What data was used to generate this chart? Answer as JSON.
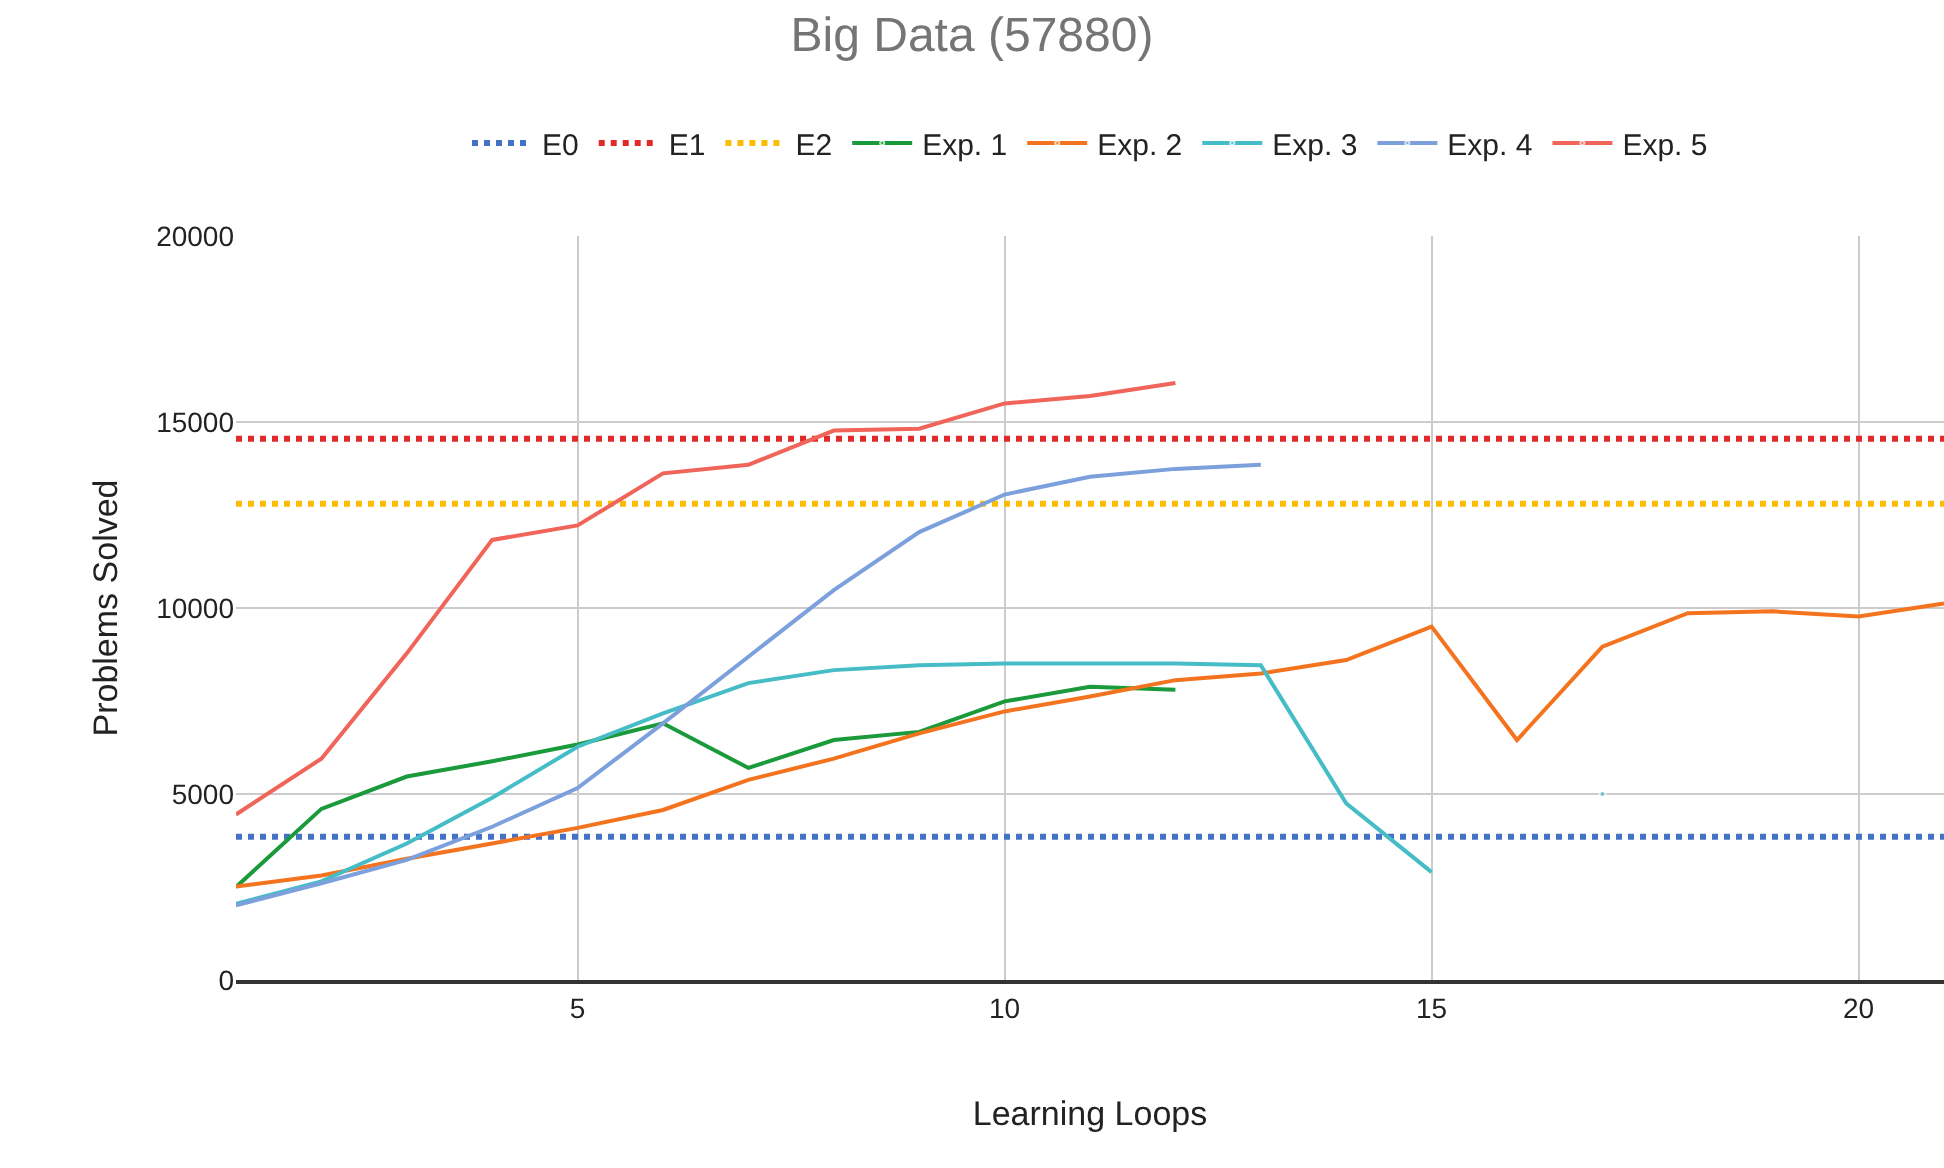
{
  "chart_data": {
    "type": "line",
    "title": "Big Data (57880)",
    "xlabel": "Learning Loops",
    "ylabel": "Problems Solved",
    "x": [
      1,
      2,
      3,
      4,
      5,
      6,
      7,
      8,
      9,
      10,
      11,
      12,
      13,
      14,
      15,
      16,
      17,
      18,
      19,
      20,
      21
    ],
    "xlim": [
      1,
      21
    ],
    "xticks": [
      5,
      10,
      15,
      20
    ],
    "ylim": [
      0,
      20000
    ],
    "yticks": [
      0,
      5000,
      10000,
      15000,
      20000
    ],
    "grid": true,
    "legend": "top",
    "marker": "none",
    "line_style": "solid",
    "ref_lines": [
      {
        "axis": "y",
        "value": 3850,
        "label": "E0",
        "color": "#4472c4",
        "line_style": "dotted"
      },
      {
        "axis": "y",
        "value": 14550,
        "label": "E1",
        "color": "#e02a2a",
        "line_style": "dotted"
      },
      {
        "axis": "y",
        "value": 12800,
        "label": "E2",
        "color": "#fbbc04",
        "line_style": "dotted"
      }
    ],
    "series": [
      {
        "name": "Exp. 1",
        "color": "#1a9a3a",
        "values": [
          2500,
          4600,
          5470,
          5880,
          6330,
          6900,
          5700,
          6450,
          6670,
          7490,
          7880,
          7800,
          null,
          null,
          null,
          null,
          null,
          null,
          null,
          null,
          null
        ]
      },
      {
        "name": "Exp. 2",
        "color": "#f4731e",
        "values": [
          2510,
          2810,
          3260,
          3670,
          4090,
          4570,
          5380,
          5950,
          6630,
          7220,
          7620,
          8060,
          8240,
          8600,
          9500,
          6450,
          8960,
          9860,
          9910,
          9770,
          10120
        ]
      },
      {
        "name": "Exp. 3",
        "color": "#46bdc6",
        "values": [
          2050,
          2650,
          3670,
          4900,
          6270,
          7170,
          7980,
          8330,
          8460,
          8510,
          8510,
          8510,
          8460,
          4750,
          2900,
          null,
          5000,
          null,
          null,
          null,
          null
        ]
      },
      {
        "name": "Exp. 4",
        "color": "#7ba0dc",
        "values": [
          2010,
          2600,
          3230,
          4120,
          5160,
          6900,
          8690,
          10480,
          12040,
          13050,
          13530,
          13740,
          13850,
          null,
          null,
          null,
          null,
          null,
          null,
          null,
          null
        ]
      },
      {
        "name": "Exp. 5",
        "color": "#f0645a",
        "values": [
          4450,
          5950,
          8780,
          11830,
          12220,
          13620,
          13850,
          14770,
          14820,
          15500,
          15700,
          16050,
          null,
          null,
          null,
          null,
          null,
          null,
          null,
          null,
          null
        ]
      }
    ]
  }
}
